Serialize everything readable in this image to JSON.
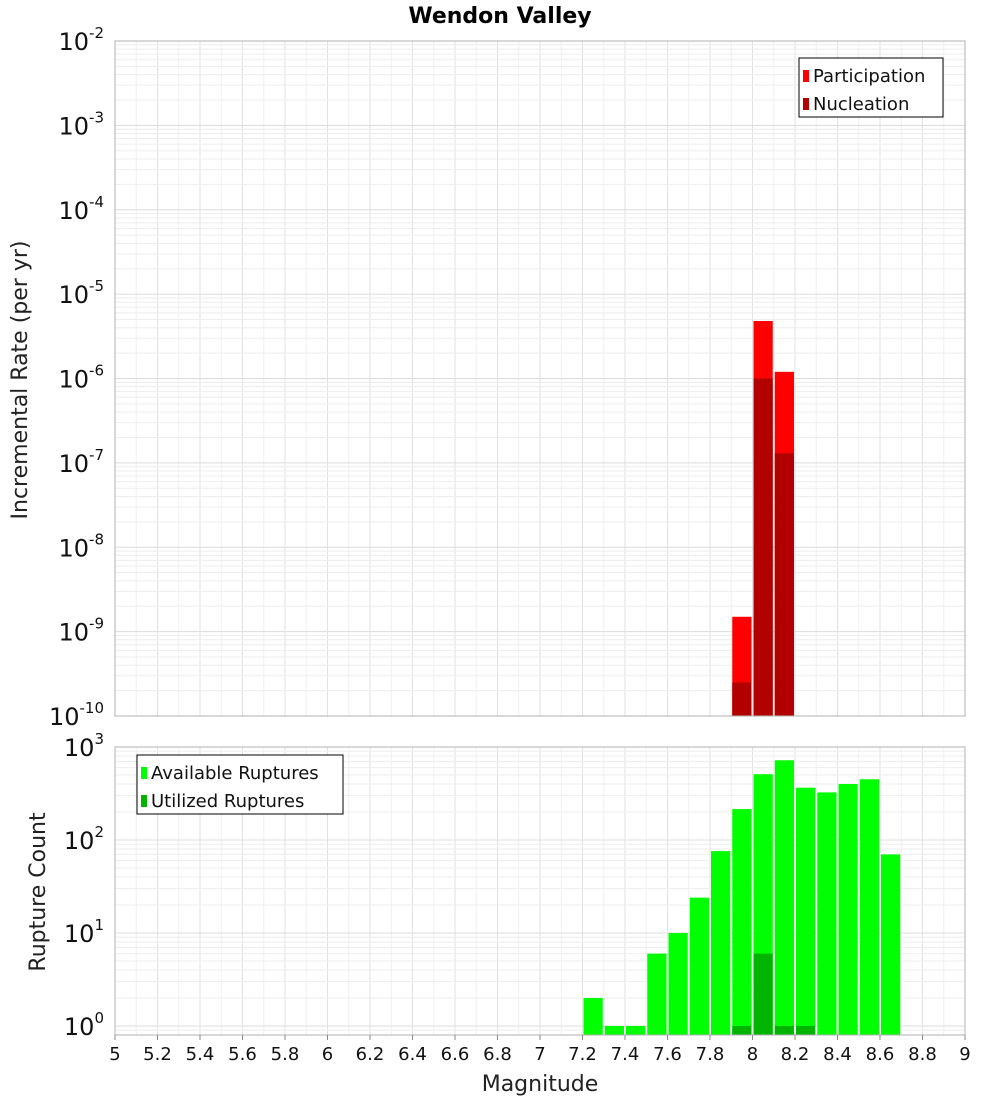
{
  "chart_data": [
    {
      "type": "bar",
      "title": "Wendon Valley",
      "ylabel": "Incremental Rate (per yr)",
      "xlim": [
        5,
        9
      ],
      "ylim": [
        1e-10,
        0.01
      ],
      "y_scale": "log",
      "y_ticks": [
        {
          "base": "10",
          "exp": "-10"
        },
        {
          "base": "10",
          "exp": "-9"
        },
        {
          "base": "10",
          "exp": "-8"
        },
        {
          "base": "10",
          "exp": "-7"
        },
        {
          "base": "10",
          "exp": "-6"
        },
        {
          "base": "10",
          "exp": "-5"
        },
        {
          "base": "10",
          "exp": "-4"
        },
        {
          "base": "10",
          "exp": "-3"
        },
        {
          "base": "10",
          "exp": "-2"
        }
      ],
      "grid": true,
      "legend_position": "top-right",
      "bin_width": 0.1,
      "series": [
        {
          "name": "Participation",
          "color": "#ff0000",
          "x": [
            7.95,
            8.05,
            8.15
          ],
          "values": [
            1.5e-09,
            4.8e-06,
            1.2e-06
          ]
        },
        {
          "name": "Nucleation",
          "color": "#b20000",
          "x": [
            7.95,
            8.05,
            8.15
          ],
          "values": [
            2.5e-10,
            1e-06,
            1.3e-07
          ]
        }
      ]
    },
    {
      "type": "bar",
      "title": "",
      "xlabel": "Magnitude",
      "ylabel": "Rupture Count",
      "xlim": [
        5,
        9
      ],
      "ylim": [
        0.8,
        1000
      ],
      "y_scale": "log",
      "x_ticks": [
        "5",
        "5.2",
        "5.4",
        "5.6",
        "5.8",
        "6",
        "6.2",
        "6.4",
        "6.6",
        "6.8",
        "7",
        "7.2",
        "7.4",
        "7.6",
        "7.8",
        "8",
        "8.2",
        "8.4",
        "8.6",
        "8.8",
        "9"
      ],
      "y_ticks": [
        {
          "base": "10",
          "exp": "0"
        },
        {
          "base": "10",
          "exp": "1"
        },
        {
          "base": "10",
          "exp": "2"
        },
        {
          "base": "10",
          "exp": "3"
        }
      ],
      "grid": true,
      "legend_position": "top-left",
      "bin_width": 0.1,
      "series": [
        {
          "name": "Available Ruptures",
          "color": "#00ff00",
          "x": [
            7.25,
            7.35,
            7.45,
            7.55,
            7.65,
            7.75,
            7.85,
            7.95,
            8.05,
            8.15,
            8.25,
            8.35,
            8.45,
            8.55,
            8.65
          ],
          "values": [
            2,
            1,
            1,
            6,
            10,
            24,
            76,
            215,
            510,
            720,
            365,
            325,
            400,
            450,
            70
          ]
        },
        {
          "name": "Utilized Ruptures",
          "color": "#00b400",
          "x": [
            7.95,
            8.05,
            8.15,
            8.25
          ],
          "values": [
            1,
            6,
            1,
            1
          ]
        }
      ]
    }
  ]
}
